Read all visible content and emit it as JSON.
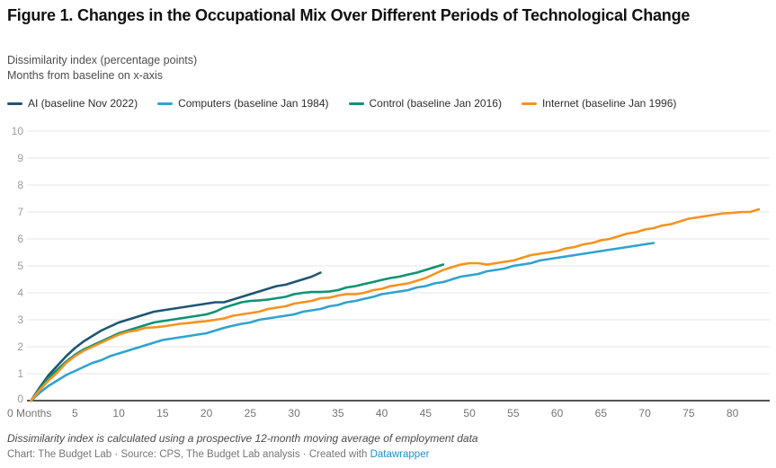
{
  "header": {
    "title": "Figure 1. Changes in the Occupational Mix Over Different Periods of Technological Change",
    "subtitle_line1": "Dissimilarity index (percentage points)",
    "subtitle_line2": "Months from baseline on x-axis"
  },
  "legend": [
    {
      "label": "AI (baseline Nov 2022)",
      "color": "#1e5672"
    },
    {
      "label": "Computers (baseline Jan 1984)",
      "color": "#2fa3cf"
    },
    {
      "label": "Control (baseline Jan 2016)",
      "color": "#0c9373"
    },
    {
      "label": "Internet (baseline Jan 1996)",
      "color": "#f6921e"
    }
  ],
  "footer": {
    "note": "Dissimilarity index is calculated using a prospective 12-month moving average of employment data",
    "credit_prefix": "Chart: The Budget Lab · Source: CPS, The Budget Lab analysis · Created with ",
    "credit_link_label": "Datawrapper"
  },
  "colors": {
    "gridline": "#e4e4e4",
    "baseline": "#1a1a1a",
    "y_tick_label": "#9c9c9c",
    "x_tick_label": "#747474",
    "link_blue": "#1e8fca"
  },
  "chart_data": {
    "type": "line",
    "title": "Figure 1. Changes in the Occupational Mix Over Different Periods of Technological Change",
    "xlabel": "Months from baseline",
    "ylabel": "Dissimilarity index (percentage points)",
    "xlim": [
      0,
      84
    ],
    "ylim": [
      0,
      10
    ],
    "grid": "horizontal",
    "legend_position": "top",
    "y_ticks": [
      0,
      1,
      2,
      3,
      4,
      5,
      6,
      7,
      8,
      9,
      10
    ],
    "x_tick_values": [
      0,
      5,
      10,
      15,
      20,
      25,
      30,
      35,
      40,
      45,
      50,
      55,
      60,
      65,
      70,
      75,
      80
    ],
    "x_tick_labels": [
      "0 Months",
      "5",
      "10",
      "15",
      "20",
      "25",
      "30",
      "35",
      "40",
      "45",
      "50",
      "55",
      "60",
      "65",
      "70",
      "75",
      "80"
    ],
    "x_unit": "months from baseline (step 1 per value)",
    "series": [
      {
        "name": "AI (baseline Nov 2022)",
        "slug": "ai",
        "color": "#1e5672",
        "x0": 0,
        "x_step": 1,
        "values": [
          0,
          0.5,
          0.95,
          1.3,
          1.65,
          1.95,
          2.2,
          2.4,
          2.6,
          2.75,
          2.9,
          3.0,
          3.1,
          3.2,
          3.3,
          3.35,
          3.4,
          3.45,
          3.5,
          3.55,
          3.6,
          3.65,
          3.65,
          3.75,
          3.85,
          3.95,
          4.05,
          4.15,
          4.25,
          4.3,
          4.4,
          4.5,
          4.6,
          4.75
        ]
      },
      {
        "name": "Computers (baseline Jan 1984)",
        "slug": "computers",
        "color": "#2fa3cf",
        "x0": 0,
        "x_step": 1,
        "values": [
          0,
          0.3,
          0.55,
          0.75,
          0.95,
          1.1,
          1.25,
          1.4,
          1.5,
          1.65,
          1.75,
          1.85,
          1.95,
          2.05,
          2.15,
          2.25,
          2.3,
          2.35,
          2.4,
          2.45,
          2.5,
          2.6,
          2.7,
          2.78,
          2.85,
          2.9,
          3.0,
          3.05,
          3.1,
          3.15,
          3.2,
          3.3,
          3.35,
          3.4,
          3.5,
          3.55,
          3.65,
          3.7,
          3.78,
          3.85,
          3.95,
          4.0,
          4.05,
          4.1,
          4.2,
          4.25,
          4.35,
          4.4,
          4.5,
          4.6,
          4.65,
          4.7,
          4.8,
          4.85,
          4.9,
          5.0,
          5.05,
          5.1,
          5.2,
          5.25,
          5.3,
          5.35,
          5.4,
          5.45,
          5.5,
          5.55,
          5.6,
          5.65,
          5.7,
          5.75,
          5.8,
          5.85
        ]
      },
      {
        "name": "Control (baseline Jan 2016)",
        "slug": "control",
        "color": "#0c9373",
        "x0": 0,
        "x_step": 1,
        "values": [
          0,
          0.45,
          0.85,
          1.15,
          1.45,
          1.7,
          1.9,
          2.05,
          2.2,
          2.35,
          2.5,
          2.6,
          2.7,
          2.8,
          2.9,
          2.95,
          3.0,
          3.05,
          3.1,
          3.15,
          3.2,
          3.3,
          3.45,
          3.55,
          3.65,
          3.7,
          3.72,
          3.75,
          3.8,
          3.85,
          3.95,
          4.0,
          4.03,
          4.03,
          4.05,
          4.1,
          4.2,
          4.25,
          4.33,
          4.4,
          4.48,
          4.55,
          4.6,
          4.68,
          4.75,
          4.85,
          4.95,
          5.05
        ]
      },
      {
        "name": "Internet (baseline Jan 1996)",
        "slug": "internet",
        "color": "#f6921e",
        "x0": 0,
        "x_step": 1,
        "values": [
          0,
          0.4,
          0.75,
          1.05,
          1.4,
          1.65,
          1.85,
          2.0,
          2.15,
          2.3,
          2.45,
          2.55,
          2.6,
          2.7,
          2.72,
          2.75,
          2.8,
          2.85,
          2.88,
          2.92,
          2.95,
          3.0,
          3.05,
          3.15,
          3.2,
          3.25,
          3.3,
          3.4,
          3.45,
          3.5,
          3.6,
          3.65,
          3.7,
          3.8,
          3.82,
          3.9,
          3.95,
          3.95,
          4.0,
          4.1,
          4.15,
          4.25,
          4.3,
          4.35,
          4.45,
          4.55,
          4.7,
          4.85,
          4.95,
          5.05,
          5.1,
          5.1,
          5.05,
          5.1,
          5.15,
          5.2,
          5.3,
          5.4,
          5.45,
          5.5,
          5.55,
          5.65,
          5.7,
          5.8,
          5.85,
          5.95,
          6.0,
          6.1,
          6.2,
          6.25,
          6.35,
          6.4,
          6.5,
          6.55,
          6.65,
          6.75,
          6.8,
          6.85,
          6.9,
          6.95,
          6.97,
          7.0,
          7.0,
          7.1
        ]
      }
    ]
  }
}
